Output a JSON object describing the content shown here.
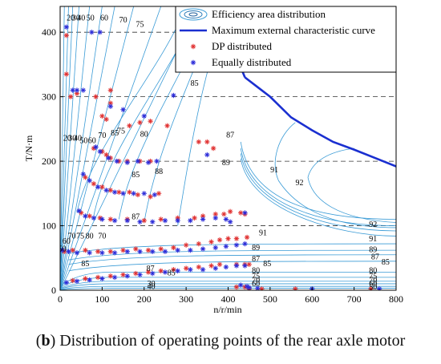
{
  "caption": {
    "prefix": "(",
    "letter": "b",
    "text": ") Distribution of operating points of the rear axle motor"
  },
  "chart_data": {
    "type": "scatter",
    "xlabel": "n/r/min",
    "ylabel": "T/N·m",
    "xlim": [
      0,
      800
    ],
    "ylim": [
      0,
      440
    ],
    "xticks": [
      0,
      100,
      200,
      300,
      400,
      500,
      600,
      700,
      800
    ],
    "yticks": [
      0,
      100,
      200,
      300,
      400
    ],
    "grid": "dashed horizontal at y ticks",
    "legend": {
      "placement": "top-right",
      "entries": [
        {
          "label": "Efficiency area distribution",
          "style": "contour",
          "color": "#3a9bd6"
        },
        {
          "label": "Maximum external characteristic curve",
          "style": "line",
          "color": "#1a2fd0"
        },
        {
          "label": "DP distributed",
          "style": "marker",
          "marker": "*",
          "color": "#e03030"
        },
        {
          "label": "Equally distributed",
          "style": "marker",
          "marker": "*",
          "color": "#2a2ad8"
        }
      ]
    },
    "max_curve": {
      "color": "#1a2fd0",
      "x": [
        440,
        470,
        500,
        550,
        600,
        650,
        700,
        750,
        800
      ],
      "y": [
        330,
        315,
        300,
        268,
        248,
        230,
        218,
        205,
        192
      ]
    },
    "contour_labels": [
      {
        "text": "20",
        "x": 25,
        "y": 418
      },
      {
        "text": "30",
        "x": 38,
        "y": 418
      },
      {
        "text": "40",
        "x": 50,
        "y": 418
      },
      {
        "text": "50",
        "x": 72,
        "y": 418
      },
      {
        "text": "60",
        "x": 105,
        "y": 418
      },
      {
        "text": "70",
        "x": 150,
        "y": 415
      },
      {
        "text": "75",
        "x": 190,
        "y": 408
      },
      {
        "text": "20",
        "x": 17,
        "y": 232
      },
      {
        "text": "30",
        "x": 29,
        "y": 232
      },
      {
        "text": "40",
        "x": 42,
        "y": 232
      },
      {
        "text": "50",
        "x": 56,
        "y": 228
      },
      {
        "text": "60",
        "x": 76,
        "y": 228
      },
      {
        "text": "70",
        "x": 100,
        "y": 236
      },
      {
        "text": "75",
        "x": 145,
        "y": 243
      },
      {
        "text": "80",
        "x": 200,
        "y": 238
      },
      {
        "text": "85",
        "x": 320,
        "y": 317
      },
      {
        "text": "87",
        "x": 405,
        "y": 237
      },
      {
        "text": "89",
        "x": 395,
        "y": 194
      },
      {
        "text": "91",
        "x": 510,
        "y": 183
      },
      {
        "text": "92",
        "x": 570,
        "y": 163
      },
      {
        "text": "92",
        "x": 745,
        "y": 98
      },
      {
        "text": "91",
        "x": 483,
        "y": 85
      },
      {
        "text": "91",
        "x": 745,
        "y": 76
      },
      {
        "text": "89",
        "x": 466,
        "y": 62
      },
      {
        "text": "89",
        "x": 745,
        "y": 59
      },
      {
        "text": "87",
        "x": 466,
        "y": 45
      },
      {
        "text": "87",
        "x": 750,
        "y": 48
      },
      {
        "text": "85",
        "x": 493,
        "y": 37
      },
      {
        "text": "85",
        "x": 775,
        "y": 40
      },
      {
        "text": "80",
        "x": 466,
        "y": 27
      },
      {
        "text": "80",
        "x": 745,
        "y": 27
      },
      {
        "text": "75",
        "x": 466,
        "y": 18
      },
      {
        "text": "75",
        "x": 745,
        "y": 18
      },
      {
        "text": "70",
        "x": 466,
        "y": 12
      },
      {
        "text": "70",
        "x": 745,
        "y": 12
      },
      {
        "text": "60",
        "x": 466,
        "y": 6
      },
      {
        "text": "60",
        "x": 745,
        "y": 6
      },
      {
        "text": "50",
        "x": 745,
        "y": 1
      },
      {
        "text": "50",
        "x": 5,
        "y": 60
      },
      {
        "text": "60",
        "x": 15,
        "y": 72
      },
      {
        "text": "70",
        "x": 28,
        "y": 80
      },
      {
        "text": "75",
        "x": 48,
        "y": 80
      },
      {
        "text": "80",
        "x": 70,
        "y": 80
      },
      {
        "text": "85",
        "x": 60,
        "y": 37
      },
      {
        "text": "87",
        "x": 215,
        "y": 30
      },
      {
        "text": "85",
        "x": 265,
        "y": 23
      },
      {
        "text": "88",
        "x": 235,
        "y": 180
      },
      {
        "text": "85",
        "x": 180,
        "y": 175
      },
      {
        "text": "87",
        "x": 180,
        "y": 110
      },
      {
        "text": "85",
        "x": 130,
        "y": 240
      },
      {
        "text": "70",
        "x": 100,
        "y": 80
      },
      {
        "text": "40",
        "x": 217,
        "y": 2
      },
      {
        "text": "30",
        "x": 217,
        "y": 6
      }
    ],
    "series": [
      {
        "name": "DP distributed",
        "color": "#e03030",
        "points": [
          [
            15,
            395
          ],
          [
            15,
            335
          ],
          [
            25,
            300
          ],
          [
            40,
            305
          ],
          [
            85,
            300
          ],
          [
            120,
            310
          ],
          [
            120,
            290
          ],
          [
            100,
            270
          ],
          [
            110,
            265
          ],
          [
            165,
            255
          ],
          [
            190,
            260
          ],
          [
            215,
            262
          ],
          [
            255,
            255
          ],
          [
            350,
            230
          ],
          [
            365,
            220
          ],
          [
            330,
            230
          ],
          [
            80,
            220
          ],
          [
            100,
            215
          ],
          [
            110,
            210
          ],
          [
            120,
            205
          ],
          [
            140,
            200
          ],
          [
            160,
            200
          ],
          [
            190,
            200
          ],
          [
            215,
            200
          ],
          [
            60,
            175
          ],
          [
            80,
            165
          ],
          [
            100,
            160
          ],
          [
            120,
            155
          ],
          [
            140,
            152
          ],
          [
            165,
            152
          ],
          [
            185,
            148
          ],
          [
            215,
            145
          ],
          [
            235,
            150
          ],
          [
            50,
            120
          ],
          [
            70,
            115
          ],
          [
            95,
            112
          ],
          [
            120,
            110
          ],
          [
            160,
            110
          ],
          [
            200,
            108
          ],
          [
            240,
            110
          ],
          [
            280,
            112
          ],
          [
            320,
            112
          ],
          [
            340,
            115
          ],
          [
            370,
            118
          ],
          [
            390,
            118
          ],
          [
            405,
            122
          ],
          [
            430,
            120
          ],
          [
            440,
            118
          ],
          [
            10,
            60
          ],
          [
            30,
            62
          ],
          [
            60,
            62
          ],
          [
            90,
            60
          ],
          [
            120,
            60
          ],
          [
            150,
            62
          ],
          [
            180,
            64
          ],
          [
            210,
            62
          ],
          [
            240,
            64
          ],
          [
            270,
            66
          ],
          [
            300,
            70
          ],
          [
            330,
            72
          ],
          [
            360,
            75
          ],
          [
            380,
            78
          ],
          [
            400,
            80
          ],
          [
            420,
            80
          ],
          [
            445,
            82
          ],
          [
            30,
            15
          ],
          [
            60,
            18
          ],
          [
            90,
            20
          ],
          [
            120,
            22
          ],
          [
            150,
            24
          ],
          [
            180,
            26
          ],
          [
            210,
            28
          ],
          [
            240,
            30
          ],
          [
            270,
            32
          ],
          [
            300,
            34
          ],
          [
            330,
            36
          ],
          [
            360,
            38
          ],
          [
            380,
            40
          ],
          [
            420,
            40
          ],
          [
            440,
            40
          ],
          [
            450,
            40
          ],
          [
            420,
            5
          ],
          [
            440,
            5
          ],
          [
            450,
            2
          ],
          [
            480,
            2
          ],
          [
            560,
            2
          ],
          [
            740,
            2
          ]
        ]
      },
      {
        "name": "Equally distributed",
        "color": "#2a2ad8",
        "points": [
          [
            15,
            408
          ],
          [
            75,
            400
          ],
          [
            95,
            400
          ],
          [
            30,
            310
          ],
          [
            40,
            310
          ],
          [
            55,
            310
          ],
          [
            120,
            285
          ],
          [
            150,
            280
          ],
          [
            200,
            270
          ],
          [
            270,
            302
          ],
          [
            350,
            210
          ],
          [
            85,
            222
          ],
          [
            95,
            215
          ],
          [
            115,
            205
          ],
          [
            135,
            200
          ],
          [
            160,
            198
          ],
          [
            185,
            200
          ],
          [
            210,
            198
          ],
          [
            230,
            200
          ],
          [
            55,
            180
          ],
          [
            70,
            170
          ],
          [
            90,
            160
          ],
          [
            110,
            155
          ],
          [
            130,
            152
          ],
          [
            150,
            150
          ],
          [
            175,
            150
          ],
          [
            200,
            150
          ],
          [
            225,
            148
          ],
          [
            45,
            123
          ],
          [
            60,
            115
          ],
          [
            80,
            112
          ],
          [
            100,
            110
          ],
          [
            130,
            108
          ],
          [
            160,
            108
          ],
          [
            190,
            106
          ],
          [
            220,
            106
          ],
          [
            250,
            108
          ],
          [
            280,
            108
          ],
          [
            310,
            108
          ],
          [
            340,
            110
          ],
          [
            370,
            112
          ],
          [
            395,
            110
          ],
          [
            405,
            106
          ],
          [
            440,
            120
          ],
          [
            5,
            62
          ],
          [
            20,
            60
          ],
          [
            40,
            58
          ],
          [
            70,
            58
          ],
          [
            100,
            58
          ],
          [
            130,
            58
          ],
          [
            160,
            60
          ],
          [
            190,
            60
          ],
          [
            220,
            60
          ],
          [
            250,
            60
          ],
          [
            280,
            62
          ],
          [
            310,
            62
          ],
          [
            340,
            64
          ],
          [
            370,
            66
          ],
          [
            395,
            68
          ],
          [
            420,
            70
          ],
          [
            440,
            72
          ],
          [
            15,
            12
          ],
          [
            40,
            14
          ],
          [
            70,
            16
          ],
          [
            100,
            18
          ],
          [
            130,
            20
          ],
          [
            160,
            22
          ],
          [
            190,
            24
          ],
          [
            220,
            26
          ],
          [
            250,
            28
          ],
          [
            280,
            30
          ],
          [
            310,
            32
          ],
          [
            340,
            32
          ],
          [
            370,
            34
          ],
          [
            395,
            36
          ],
          [
            420,
            38
          ],
          [
            440,
            38
          ],
          [
            430,
            8
          ],
          [
            445,
            6
          ],
          [
            450,
            4
          ],
          [
            470,
            3
          ],
          [
            600,
            2
          ],
          [
            760,
            2
          ]
        ]
      }
    ]
  }
}
